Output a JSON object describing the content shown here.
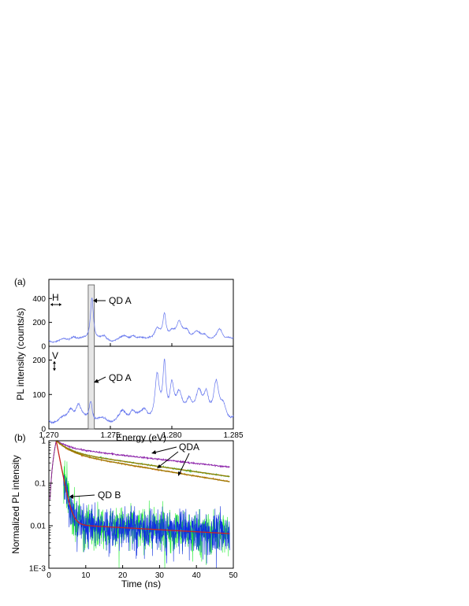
{
  "chart_data": [
    {
      "panel_label": "(a)",
      "type": "line",
      "subpanels": [
        {
          "polarization": "H",
          "ylim": [
            0,
            560
          ],
          "yticks": [
            "0",
            "200",
            "400"
          ],
          "annotation": "QD A",
          "baseline": 50,
          "peaks": [
            {
              "x": 1.272,
              "h": 45,
              "w": 0.00025
            },
            {
              "x": 1.2735,
              "h": 370,
              "w": 0.00015
            },
            {
              "x": 1.2745,
              "h": 25,
              "w": 0.00025
            },
            {
              "x": 1.2762,
              "h": 30,
              "w": 0.0003
            },
            {
              "x": 1.2768,
              "h": 45,
              "w": 0.00025
            },
            {
              "x": 1.2782,
              "h": 25,
              "w": 0.0003
            },
            {
              "x": 1.2788,
              "h": 80,
              "w": 0.00025
            },
            {
              "x": 1.2794,
              "h": 200,
              "w": 0.00015
            },
            {
              "x": 1.28,
              "h": 70,
              "w": 0.0003
            },
            {
              "x": 1.2806,
              "h": 120,
              "w": 0.00025
            },
            {
              "x": 1.2812,
              "h": 80,
              "w": 0.0003
            },
            {
              "x": 1.282,
              "h": 50,
              "w": 0.0003
            },
            {
              "x": 1.2827,
              "h": 45,
              "w": 0.0003
            },
            {
              "x": 1.2839,
              "h": 80,
              "w": 0.00025
            },
            {
              "x": 1.2846,
              "h": 30,
              "w": 0.0003
            }
          ]
        },
        {
          "polarization": "V",
          "ylim": [
            0,
            240
          ],
          "yticks": [
            "0",
            "100",
            "200"
          ],
          "annotation": "QD A",
          "baseline": 25,
          "peaks": [
            {
              "x": 1.2718,
              "h": 35,
              "w": 0.0003
            },
            {
              "x": 1.2724,
              "h": 40,
              "w": 0.00025
            },
            {
              "x": 1.2734,
              "h": 60,
              "w": 0.00015
            },
            {
              "x": 1.276,
              "h": 20,
              "w": 0.0003
            },
            {
              "x": 1.2768,
              "h": 30,
              "w": 0.0003
            },
            {
              "x": 1.2778,
              "h": 25,
              "w": 0.0003
            },
            {
              "x": 1.2788,
              "h": 120,
              "w": 0.0002
            },
            {
              "x": 1.2794,
              "h": 150,
              "w": 0.00015
            },
            {
              "x": 1.28,
              "h": 95,
              "w": 0.0002
            },
            {
              "x": 1.2806,
              "h": 60,
              "w": 0.0003
            },
            {
              "x": 1.2814,
              "h": 55,
              "w": 0.0003
            },
            {
              "x": 1.2822,
              "h": 65,
              "w": 0.0003
            },
            {
              "x": 1.2828,
              "h": 70,
              "w": 0.00025
            },
            {
              "x": 1.2836,
              "h": 95,
              "w": 0.00025
            },
            {
              "x": 1.2842,
              "h": 40,
              "w": 0.0003
            }
          ]
        }
      ],
      "xlim": [
        1.27,
        1.285
      ],
      "xticks": [
        "1.270",
        "1.275",
        "1.280",
        "1.285"
      ],
      "xlabel": "Energy (eV)",
      "ylabel": "PL intensity (counts/s)",
      "highlight_band": [
        1.2732,
        1.2737
      ],
      "line_color": "#6677ee"
    },
    {
      "panel_label": "(b)",
      "type": "line",
      "yscale": "log",
      "xlim": [
        0,
        50
      ],
      "ylim": [
        0.001,
        1
      ],
      "xticks": [
        "0",
        "10",
        "20",
        "30",
        "40",
        "50"
      ],
      "yticks": [
        "1E-3",
        "0.01",
        "0.1",
        "1"
      ],
      "xlabel": "Time (ns)",
      "ylabel": "Normalized PL intensity",
      "annotations": [
        "QDA",
        "QD B"
      ],
      "series": [
        {
          "color": "#8a1fa8",
          "a1": 0.32,
          "t1": 3,
          "a2": 0.68,
          "t2": 45,
          "end": 0.22
        },
        {
          "color": "#22cc55",
          "a1": 0.45,
          "t1": 3,
          "a2": 0.55,
          "t2": 35,
          "end": 0.13
        },
        {
          "color": "#e07020",
          "a1": 0.48,
          "t1": 3,
          "a2": 0.52,
          "t2": 30,
          "end": 0.11
        },
        {
          "color": "#1030e0",
          "a1": 0.99,
          "t1": 0.95,
          "a2": 0.011,
          "t2": 90,
          "end": 0.007
        },
        {
          "color": "#22ee33",
          "a1": 0.99,
          "t1": 1.0,
          "a2": 0.011,
          "t2": 90,
          "end": 0.007
        }
      ],
      "fit_colors": [
        "#cc2222",
        "#9a7b00"
      ],
      "rise_time_ns": 2
    }
  ]
}
